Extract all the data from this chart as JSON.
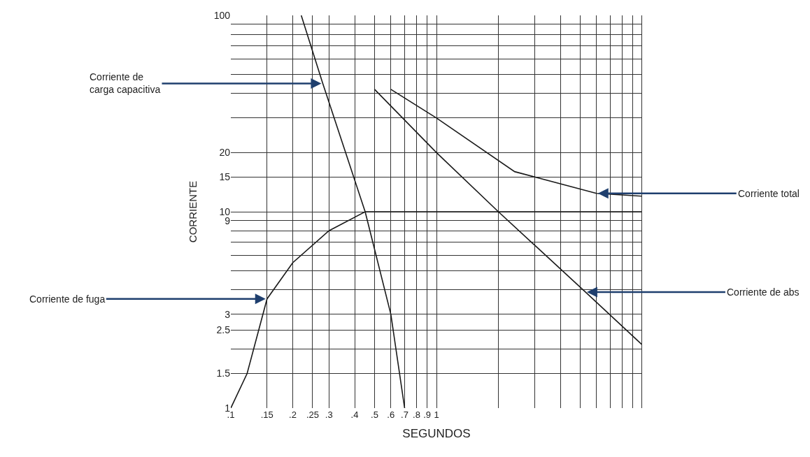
{
  "chart_data": {
    "type": "line",
    "xlabel": "SEGUNDOS",
    "ylabel": "CORRIENTE",
    "log": "xy",
    "grid": true,
    "line_style": "solid",
    "xlim": [
      0.1,
      10
    ],
    "ylim": [
      1,
      100
    ],
    "xticks": [
      {
        "value": 0.1,
        "label": ".1"
      },
      {
        "value": 0.15,
        "label": ".15"
      },
      {
        "value": 0.2,
        "label": ".2"
      },
      {
        "value": 0.25,
        "label": ".25"
      },
      {
        "value": 0.3,
        "label": ".3"
      },
      {
        "value": 0.4,
        "label": ".4"
      },
      {
        "value": 0.5,
        "label": ".5"
      },
      {
        "value": 0.6,
        "label": ".6"
      },
      {
        "value": 0.7,
        "label": ".7"
      },
      {
        "value": 0.8,
        "label": ".8"
      },
      {
        "value": 0.9,
        "label": ".9"
      },
      1,
      {
        "value": 2,
        "label": null
      },
      {
        "value": 3,
        "label": null
      },
      {
        "value": 4,
        "label": null
      },
      {
        "value": 5,
        "label": null
      },
      {
        "value": 6,
        "label": null
      },
      {
        "value": 7,
        "label": null
      },
      {
        "value": 8,
        "label": null
      },
      {
        "value": 9,
        "label": null
      },
      {
        "value": 10,
        "label": null
      }
    ],
    "yticks": [
      1,
      1.5,
      {
        "value": 2,
        "label": null
      },
      2.5,
      3,
      {
        "value": 4,
        "label": null
      },
      {
        "value": 5,
        "label": null
      },
      {
        "value": 6,
        "label": null
      },
      {
        "value": 7,
        "label": null
      },
      {
        "value": 8,
        "label": null
      },
      9,
      10,
      15,
      20,
      {
        "value": 30,
        "label": null
      },
      {
        "value": 40,
        "label": null
      },
      {
        "value": 50,
        "label": null
      },
      {
        "value": 60,
        "label": null
      },
      {
        "value": 70,
        "label": null
      },
      {
        "value": 80,
        "label": null
      },
      {
        "value": 90,
        "label": null
      },
      100
    ],
    "series": [
      {
        "color": "#1a1a1a",
        "x": [
          0.22,
          0.28,
          0.45,
          0.6,
          0.7
        ],
        "values": [
          100,
          45,
          10,
          3,
          1
        ]
      },
      {
        "color": "#1a1a1a",
        "x": [
          0.1,
          0.12,
          0.15,
          0.2,
          0.3,
          0.45,
          10
        ],
        "values": [
          1,
          1.5,
          3.6,
          5.5,
          8,
          10,
          10
        ]
      },
      {
        "color": "#1a1a1a",
        "x": [
          0.5,
          1,
          2,
          5.3,
          10
        ],
        "values": [
          42,
          20,
          10,
          3.9,
          2.1
        ]
      },
      {
        "color": "#1a1a1a",
        "x": [
          0.6,
          1,
          2.4,
          6,
          10
        ],
        "values": [
          42,
          30,
          16,
          12.4,
          12
        ]
      }
    ],
    "annotations": [
      {
        "text": "Corriente de\ncarga capacitiva",
        "x": 0.28,
        "y": 45
      },
      {
        "text": "Corriente de fuga",
        "x": 0.15,
        "y": 3.6
      },
      {
        "text": "Corriente total",
        "x": 6,
        "y": 12.4
      },
      {
        "text": "Corriente de abs",
        "x": 5.3,
        "y": 3.9
      }
    ]
  }
}
